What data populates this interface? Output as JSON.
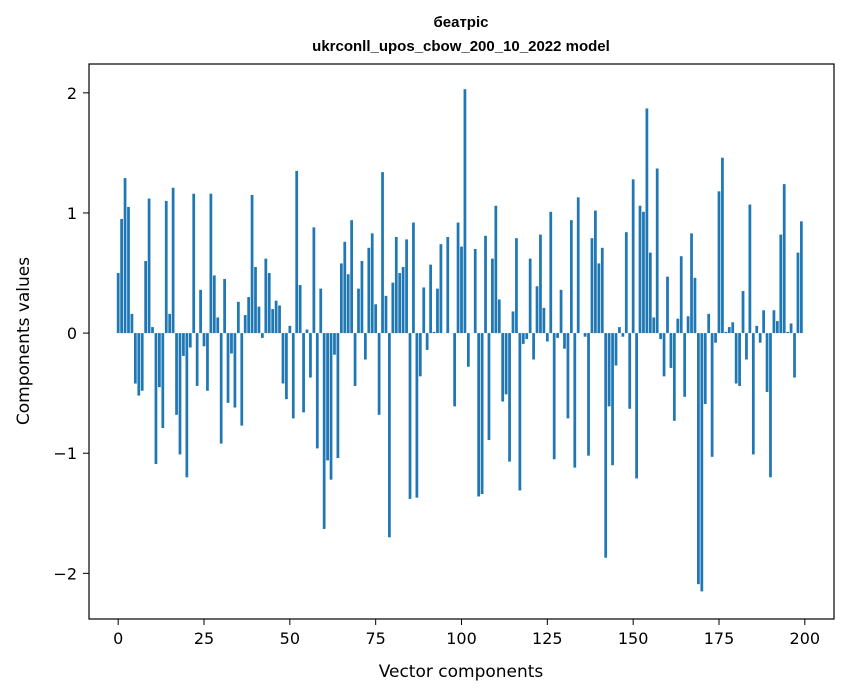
{
  "chart_data": {
    "type": "bar",
    "title_line1": "беатріс",
    "title_line2": "ukrconll_upos_cbow_200_10_2022 model",
    "xlabel": "Vector components",
    "ylabel": "Components values",
    "xlim": [
      -8.5,
      208.5
    ],
    "ylim": [
      -2.38,
      2.24
    ],
    "x_ticks": [
      0,
      25,
      50,
      75,
      100,
      125,
      150,
      175,
      200
    ],
    "y_ticks": [
      -2,
      -1,
      0,
      1,
      2
    ],
    "y_tick_labels": [
      "−2",
      "−1",
      "0",
      "1",
      "2"
    ],
    "x_tick_labels": [
      "0",
      "25",
      "50",
      "75",
      "100",
      "125",
      "150",
      "175",
      "200"
    ],
    "bar_color": "#1f77b4",
    "grid": false,
    "values": [
      0.5,
      0.95,
      1.29,
      1.05,
      0.16,
      -0.42,
      -0.52,
      -0.48,
      0.6,
      1.12,
      0.05,
      -1.09,
      -0.45,
      -0.79,
      1.1,
      0.16,
      1.21,
      -0.68,
      -1.01,
      -0.19,
      -1.2,
      -0.12,
      1.16,
      -0.44,
      0.36,
      -0.11,
      -0.48,
      1.16,
      0.48,
      0.13,
      -0.92,
      0.45,
      -0.58,
      -0.17,
      -0.62,
      0.26,
      -0.77,
      0.15,
      0.3,
      1.15,
      0.55,
      0.22,
      -0.04,
      0.62,
      0.5,
      0.2,
      0.27,
      0.23,
      -0.42,
      -0.55,
      0.06,
      -0.71,
      1.35,
      0.4,
      -0.66,
      0.03,
      -0.37,
      0.88,
      -0.96,
      0.37,
      -1.63,
      -1.06,
      -1.22,
      -0.18,
      -1.04,
      0.58,
      0.76,
      0.49,
      0.94,
      -0.44,
      0.37,
      0.6,
      -0.22,
      0.71,
      0.83,
      0.24,
      -0.68,
      1.34,
      0.31,
      -1.7,
      0.42,
      0.8,
      0.5,
      0.55,
      0.78,
      -1.38,
      0.92,
      -1.37,
      -0.36,
      0.38,
      -0.14,
      0.57,
      0.01,
      0.37,
      0.74,
      0.0,
      0.8,
      0.0,
      -0.61,
      0.92,
      0.72,
      2.03,
      -0.28,
      0.0,
      0.7,
      -1.36,
      -1.34,
      0.81,
      -0.89,
      0.62,
      1.06,
      0.28,
      -0.57,
      -0.51,
      -1.07,
      0.18,
      0.79,
      -1.31,
      -0.09,
      -0.05,
      0.62,
      -0.22,
      0.39,
      0.82,
      0.21,
      -0.07,
      1.01,
      -1.05,
      -0.04,
      0.36,
      -0.13,
      -0.71,
      0.94,
      -1.12,
      1.13,
      0.0,
      -0.03,
      -1.02,
      0.79,
      1.02,
      0.58,
      0.71,
      -1.87,
      -0.61,
      -1.1,
      -0.27,
      0.05,
      -0.03,
      0.84,
      -0.63,
      1.28,
      -1.21,
      1.06,
      1.01,
      1.87,
      0.67,
      0.13,
      1.37,
      -0.05,
      -0.36,
      0.47,
      -0.29,
      -0.73,
      0.12,
      0.64,
      -0.53,
      0.14,
      0.83,
      0.46,
      -2.09,
      -2.15,
      -0.59,
      0.16,
      -1.03,
      -0.08,
      1.18,
      1.46,
      0.01,
      0.05,
      0.09,
      -0.42,
      -0.44,
      0.35,
      -0.22,
      1.07,
      -1.01,
      0.06,
      -0.08,
      0.19,
      -0.49,
      -1.2,
      0.19,
      0.1,
      0.82,
      1.24,
      0.01,
      0.08,
      -0.37,
      0.67,
      0.93
    ]
  }
}
